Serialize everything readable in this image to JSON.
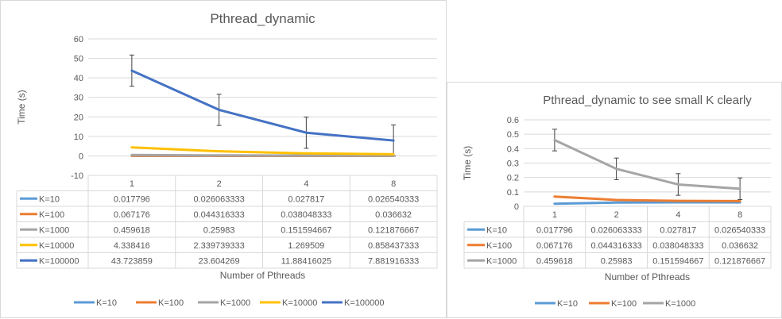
{
  "chart_data": [
    {
      "type": "line",
      "title": "Pthread_dynamic",
      "xlabel": "Number of Pthreads",
      "ylabel": "Time (s)",
      "categories": [
        "1",
        "2",
        "4",
        "8"
      ],
      "ylim": [
        -10,
        60
      ],
      "yticks": [
        "-10",
        "0",
        "10",
        "20",
        "30",
        "40",
        "50",
        "60"
      ],
      "grid": true,
      "legend": "bottom",
      "series": [
        {
          "name": "K=10",
          "color": "#5b9bd5",
          "values": [
            0.017796,
            0.026063333,
            0.027817,
            0.026540333
          ],
          "labels": [
            "0.017796",
            "0.026063333",
            "0.027817",
            "0.026540333"
          ]
        },
        {
          "name": "K=100",
          "color": "#ed7d31",
          "values": [
            0.067176,
            0.044316333,
            0.038048333,
            0.036632
          ],
          "labels": [
            "0.067176",
            "0.044316333",
            "0.038048333",
            "0.036632"
          ]
        },
        {
          "name": "K=1000",
          "color": "#a5a5a5",
          "values": [
            0.459618,
            0.25983,
            0.151594667,
            0.121876667
          ],
          "labels": [
            "0.459618",
            "0.25983",
            "0.151594667",
            "0.121876667"
          ]
        },
        {
          "name": "K=10000",
          "color": "#ffc000",
          "values": [
            4.338416,
            2.339739333,
            1.269509,
            0.858437333
          ],
          "labels": [
            "4.338416",
            "2.339739333",
            "1.269509",
            "0.858437333"
          ]
        },
        {
          "name": "K=100000",
          "color": "#4472c4",
          "values": [
            43.723859,
            23.604269,
            11.88416025,
            7.881916333
          ],
          "labels": [
            "43.723859",
            "23.604269",
            "11.88416025",
            "7.881916333"
          ],
          "error": [
            8,
            8,
            8,
            8
          ]
        }
      ]
    },
    {
      "type": "line",
      "title": "Pthread_dynamic to see small K clearly",
      "xlabel": "Number of Pthreads",
      "ylabel": "Time (s)",
      "categories": [
        "1",
        "2",
        "4",
        "8"
      ],
      "ylim": [
        0,
        0.6
      ],
      "yticks": [
        "0",
        "0.1",
        "0.2",
        "0.3",
        "0.4",
        "0.5",
        "0.6"
      ],
      "grid": true,
      "legend": "bottom",
      "series": [
        {
          "name": "K=10",
          "color": "#5b9bd5",
          "values": [
            0.017796,
            0.026063333,
            0.027817,
            0.026540333
          ],
          "labels": [
            "0.017796",
            "0.026063333",
            "0.027817",
            "0.026540333"
          ]
        },
        {
          "name": "K=100",
          "color": "#ed7d31",
          "values": [
            0.067176,
            0.044316333,
            0.038048333,
            0.036632
          ],
          "labels": [
            "0.067176",
            "0.044316333",
            "0.038048333",
            "0.036632"
          ]
        },
        {
          "name": "K=1000",
          "color": "#a5a5a5",
          "values": [
            0.459618,
            0.25983,
            0.151594667,
            0.121876667
          ],
          "labels": [
            "0.459618",
            "0.25983",
            "0.151594667",
            "0.121876667"
          ],
          "error": [
            0.075,
            0.075,
            0.075,
            0.075
          ]
        }
      ]
    }
  ]
}
